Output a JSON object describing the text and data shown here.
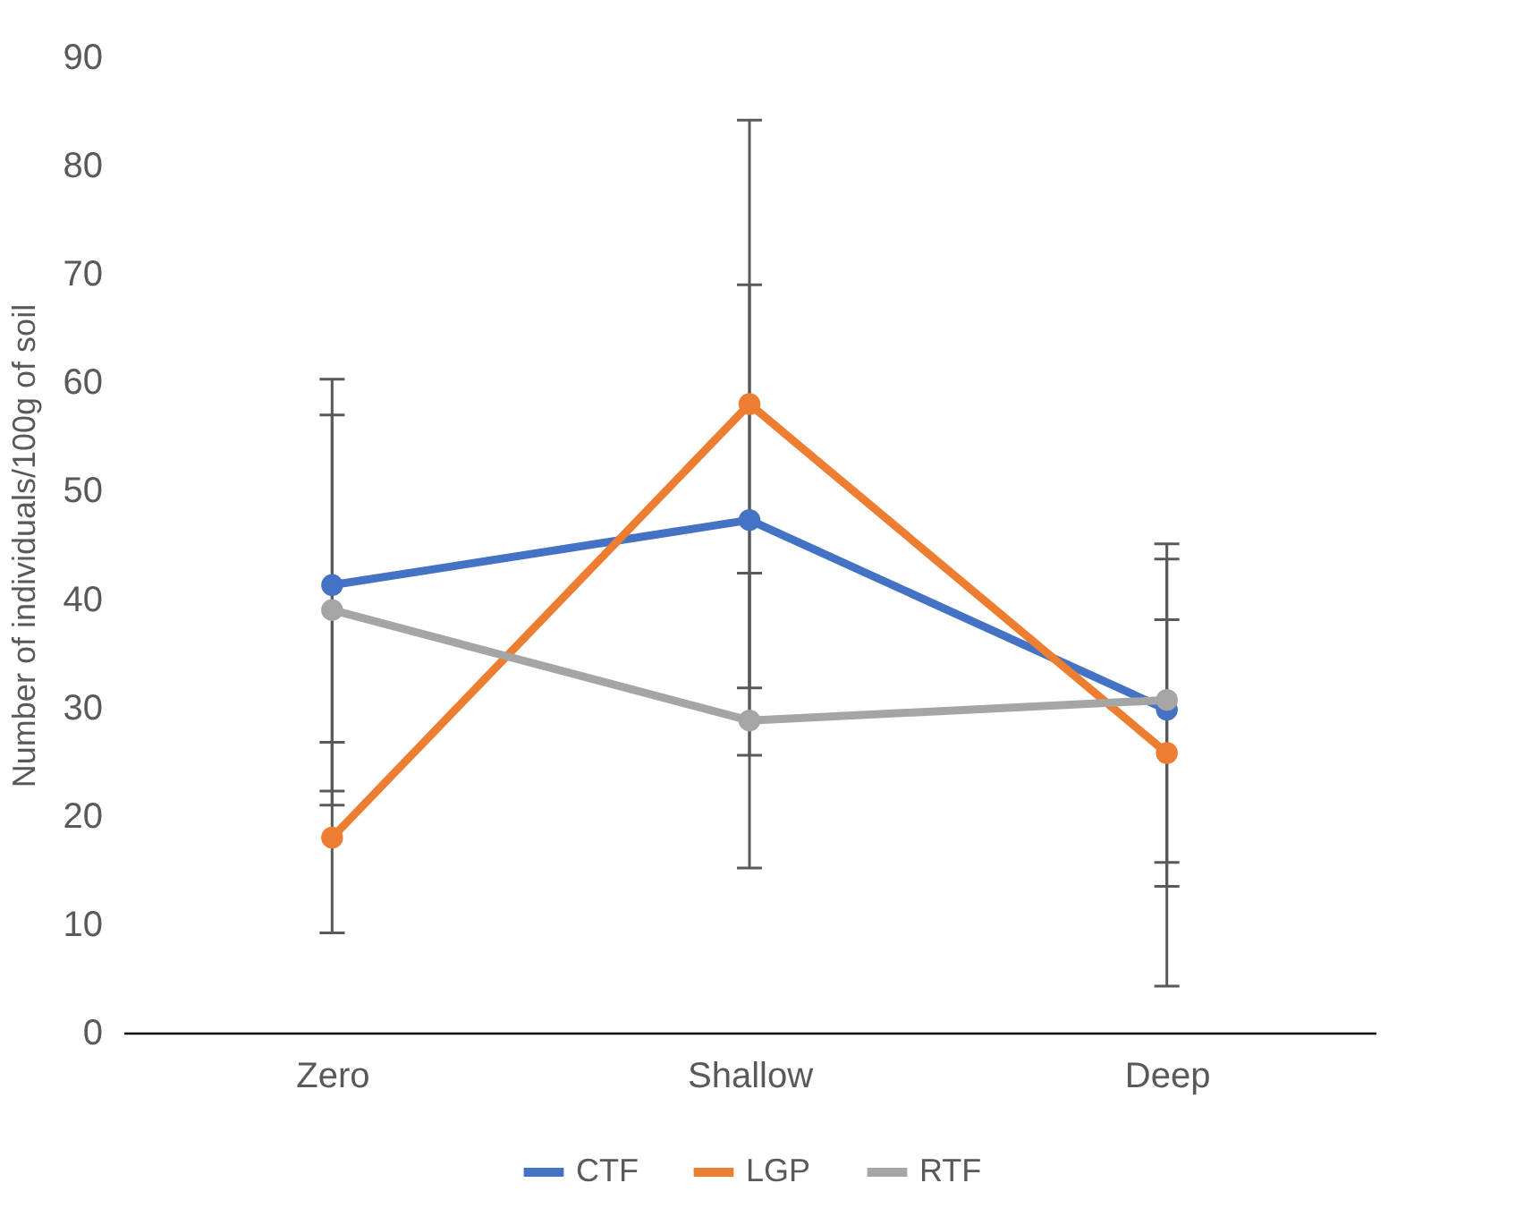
{
  "chart_data": {
    "type": "line",
    "ylabel": "Number of individuals/100g of soil",
    "categories": [
      "Zero",
      "Shallow",
      "Deep"
    ],
    "series": [
      {
        "name": "CTF",
        "color": "#4472c4",
        "values": [
          41.3,
          47.3,
          29.8
        ],
        "errors": [
          19,
          21.7,
          [
            15.7,
            43.7
          ]
        ]
      },
      {
        "name": "LGP",
        "color": "#ed7d31",
        "values": [
          18,
          58,
          25.8
        ],
        "errors": [
          8.8,
          26.2,
          [
            13.5,
            38.1
          ]
        ]
      },
      {
        "name": "RTF",
        "color": "#a5a5a5",
        "values": [
          39,
          28.8,
          30.7
        ],
        "errors": [
          18,
          13.6,
          [
            4.3,
            45.1
          ]
        ]
      }
    ],
    "ylim": [
      0,
      90
    ],
    "yticks": [
      0,
      10,
      20,
      30,
      40,
      50,
      60,
      70,
      80,
      90
    ],
    "grid": false,
    "legend": "bottom",
    "marker": "circle"
  }
}
